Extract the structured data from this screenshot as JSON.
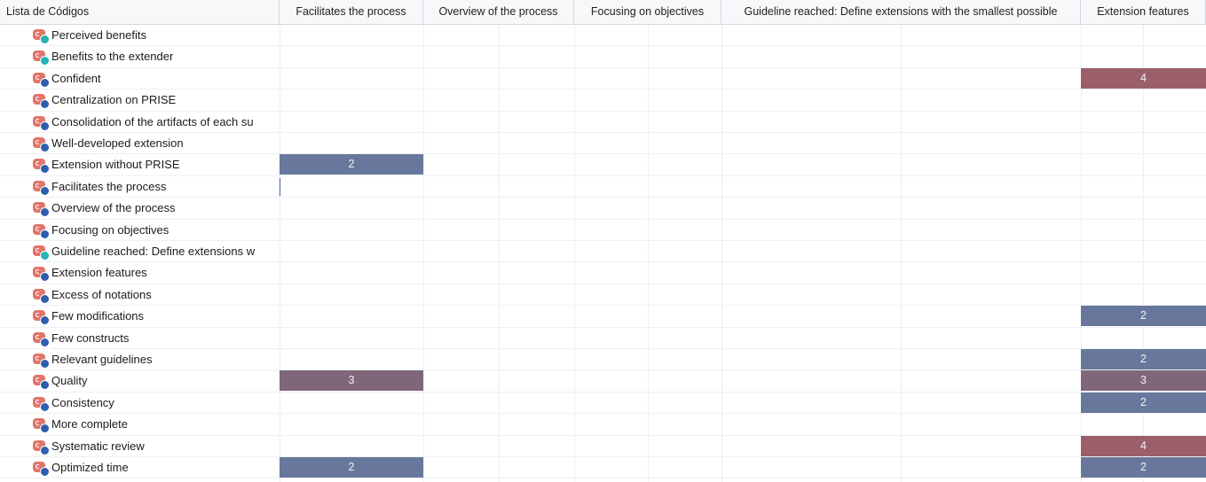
{
  "header": {
    "first_column": "Lista de Códigos",
    "columns": [
      "Facilitates the process",
      "Overview of the process",
      "Focusing on objectives",
      "Guideline reached: Define extensions with the smallest possible",
      "Extension features"
    ]
  },
  "rows": [
    {
      "label": "Perceived benefits",
      "icon": "code-icon-teal",
      "cells": [
        "",
        "",
        "",
        "",
        ""
      ]
    },
    {
      "label": "Benefits to the extender",
      "icon": "code-icon-teal",
      "cells": [
        "",
        "",
        "",
        "",
        ""
      ]
    },
    {
      "label": "Confident",
      "icon": "code-icon",
      "cells": [
        "",
        "",
        "",
        "",
        "4"
      ]
    },
    {
      "label": "Centralization on PRISE",
      "icon": "code-icon",
      "cells": [
        "",
        "",
        "",
        "",
        ""
      ]
    },
    {
      "label": "Consolidation of the artifacts of each su",
      "icon": "code-icon",
      "cells": [
        "",
        "",
        "",
        "",
        ""
      ]
    },
    {
      "label": "Well-developed extension",
      "icon": "code-icon",
      "cells": [
        "",
        "",
        "",
        "",
        ""
      ]
    },
    {
      "label": "Extension without PRISE",
      "icon": "code-icon",
      "cells": [
        "2",
        "",
        "",
        "",
        ""
      ]
    },
    {
      "label": "Facilitates the process",
      "icon": "code-icon",
      "cells": [
        "",
        "",
        "",
        "",
        ""
      ]
    },
    {
      "label": "Overview of the process",
      "icon": "code-icon",
      "cells": [
        "",
        "",
        "",
        "",
        ""
      ]
    },
    {
      "label": "Focusing on objectives",
      "icon": "code-icon",
      "cells": [
        "",
        "",
        "",
        "",
        ""
      ]
    },
    {
      "label": "Guideline reached: Define extensions w",
      "icon": "code-icon-teal",
      "cells": [
        "",
        "",
        "",
        "",
        ""
      ]
    },
    {
      "label": "Extension features",
      "icon": "code-icon",
      "cells": [
        "",
        "",
        "",
        "",
        ""
      ]
    },
    {
      "label": "Excess of notations",
      "icon": "code-icon",
      "cells": [
        "",
        "",
        "",
        "",
        ""
      ]
    },
    {
      "label": "Few modifications",
      "icon": "code-icon",
      "cells": [
        "",
        "",
        "",
        "",
        "2"
      ]
    },
    {
      "label": "Few constructs",
      "icon": "code-icon",
      "cells": [
        "",
        "",
        "",
        "",
        ""
      ]
    },
    {
      "label": "Relevant guidelines",
      "icon": "code-icon",
      "cells": [
        "",
        "",
        "",
        "",
        "2"
      ]
    },
    {
      "label": "Quality",
      "icon": "code-icon",
      "cells": [
        "3",
        "",
        "",
        "",
        "3"
      ]
    },
    {
      "label": "Consistency",
      "icon": "code-icon",
      "cells": [
        "",
        "",
        "",
        "",
        "2"
      ]
    },
    {
      "label": "More complete",
      "icon": "code-icon",
      "cells": [
        "",
        "",
        "",
        "",
        ""
      ]
    },
    {
      "label": "Systematic review",
      "icon": "code-icon",
      "cells": [
        "",
        "",
        "",
        "",
        "4"
      ]
    },
    {
      "label": "Optimized time",
      "icon": "code-icon",
      "cells": [
        "2",
        "",
        "",
        "",
        "2"
      ]
    }
  ],
  "colors": {
    "value_2": "#68789c",
    "value_3": "#7f6679",
    "value_4": "#9a5f6b",
    "icon_red": "#e2746a",
    "icon_blue": "#2e5fae",
    "icon_teal": "#22b3b7"
  }
}
